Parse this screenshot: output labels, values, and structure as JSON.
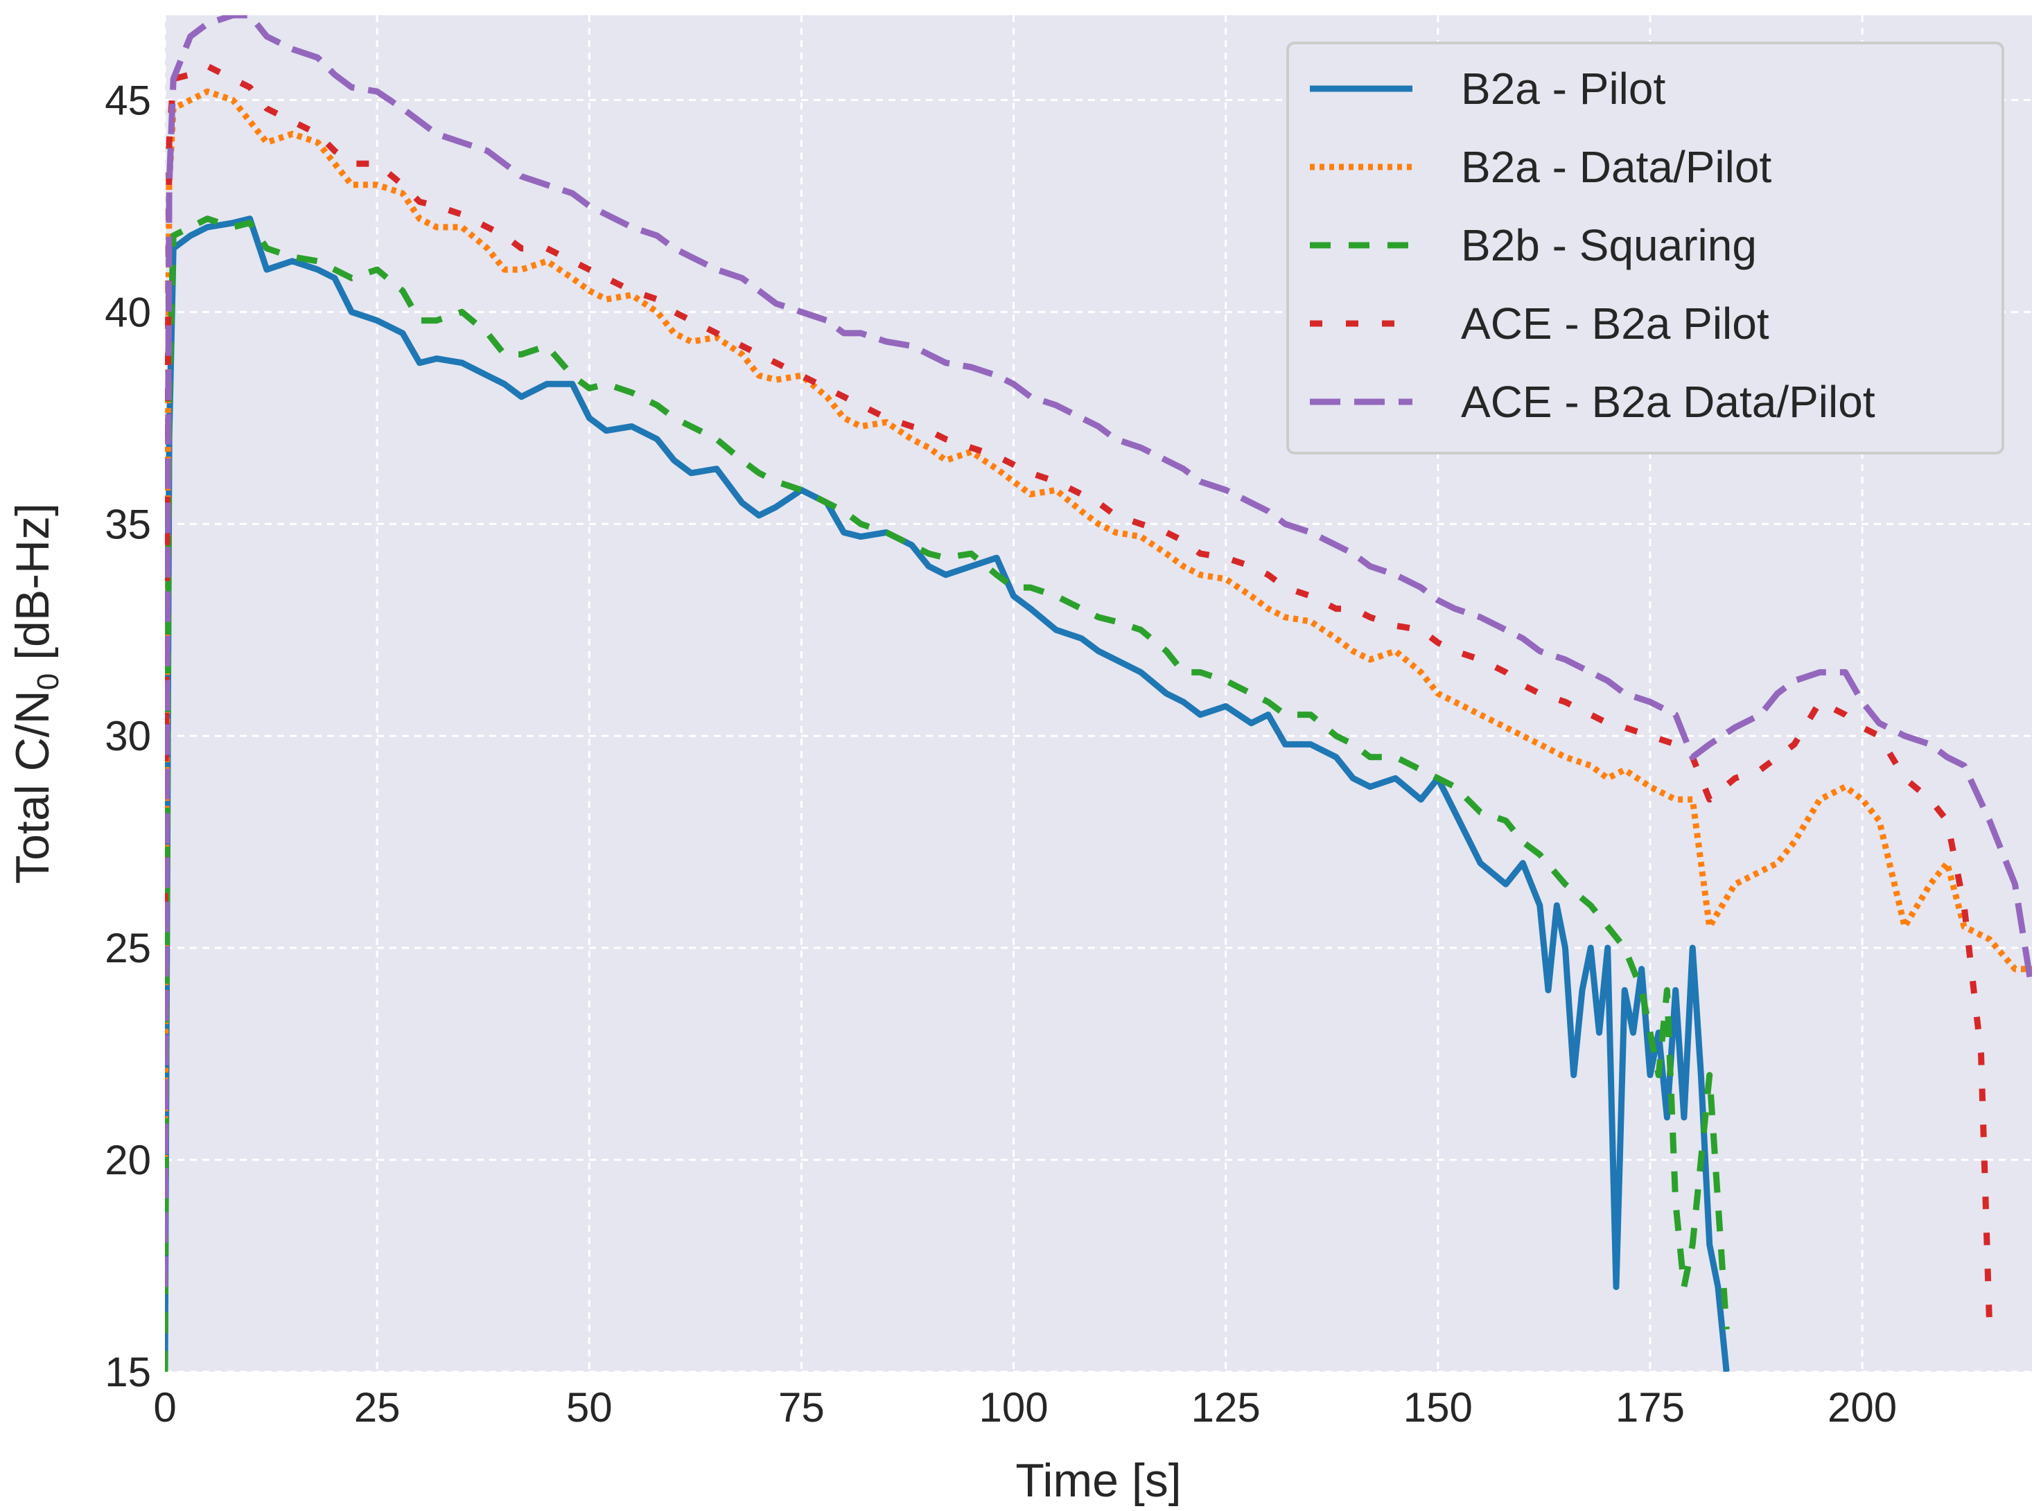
{
  "chart_data": {
    "type": "line",
    "title": "",
    "xlabel": "Time [s]",
    "ylabel_main": "Total C/N",
    "ylabel_sub": "0",
    "ylabel_tail": " [dB-Hz]",
    "xlim": [
      0,
      220
    ],
    "ylim": [
      15,
      47
    ],
    "xticks": [
      0,
      25,
      50,
      75,
      100,
      125,
      150,
      175,
      200
    ],
    "yticks": [
      15,
      20,
      25,
      30,
      35,
      40,
      45
    ],
    "grid": true,
    "legend_position": "top-right",
    "background_color": "#e5e6f0",
    "series": [
      {
        "name": "B2a - Pilot",
        "color": "#1f77b4",
        "style": "solid",
        "x": [
          0,
          0.5,
          1,
          3,
          5,
          8,
          10,
          12,
          15,
          18,
          20,
          22,
          25,
          28,
          30,
          32,
          35,
          38,
          40,
          42,
          45,
          48,
          50,
          52,
          55,
          58,
          60,
          62,
          65,
          68,
          70,
          72,
          75,
          78,
          80,
          82,
          85,
          88,
          90,
          92,
          95,
          98,
          100,
          102,
          105,
          108,
          110,
          112,
          115,
          118,
          120,
          122,
          125,
          128,
          130,
          132,
          135,
          138,
          140,
          142,
          145,
          148,
          150,
          152,
          155,
          158,
          160,
          162,
          163,
          164,
          165,
          166,
          167,
          168,
          169,
          170,
          171,
          172,
          173,
          174,
          175,
          176,
          177,
          178,
          179,
          180,
          181,
          182,
          183,
          184
        ],
        "values": [
          15,
          37,
          41.5,
          41.8,
          42,
          42.1,
          42.2,
          41,
          41.2,
          41,
          40.8,
          40,
          39.8,
          39.5,
          38.8,
          38.9,
          38.8,
          38.5,
          38.3,
          38,
          38.3,
          38.3,
          37.5,
          37.2,
          37.3,
          37,
          36.5,
          36.2,
          36.3,
          35.5,
          35.2,
          35.4,
          35.8,
          35.5,
          34.8,
          34.7,
          34.8,
          34.5,
          34,
          33.8,
          34,
          34.2,
          33.3,
          33,
          32.5,
          32.3,
          32,
          31.8,
          31.5,
          31,
          30.8,
          30.5,
          30.7,
          30.3,
          30.5,
          29.8,
          29.8,
          29.5,
          29,
          28.8,
          29,
          28.5,
          29,
          28.2,
          27,
          26.5,
          27,
          26,
          24,
          26,
          25,
          22,
          24,
          25,
          23,
          25,
          17,
          24,
          23,
          24.5,
          22,
          23,
          21,
          24,
          21,
          25,
          22,
          18,
          17,
          15
        ]
      },
      {
        "name": "B2a - Data/Pilot",
        "color": "#ff7f0e",
        "style": "dotted",
        "x": [
          0,
          0.5,
          1,
          3,
          5,
          8,
          10,
          12,
          15,
          18,
          20,
          22,
          25,
          28,
          30,
          32,
          35,
          38,
          40,
          42,
          45,
          48,
          50,
          52,
          55,
          58,
          60,
          62,
          65,
          68,
          70,
          72,
          75,
          78,
          80,
          82,
          85,
          88,
          90,
          92,
          95,
          98,
          100,
          102,
          105,
          108,
          110,
          112,
          115,
          118,
          120,
          122,
          125,
          128,
          130,
          132,
          135,
          138,
          140,
          142,
          145,
          148,
          150,
          152,
          155,
          158,
          160,
          162,
          165,
          168,
          170,
          172,
          175,
          178,
          180,
          182,
          185,
          188,
          190,
          192,
          195,
          198,
          200,
          202,
          205,
          208,
          210,
          212,
          215,
          218,
          220
        ],
        "values": [
          20,
          43,
          44.8,
          45,
          45.2,
          45,
          44.5,
          44,
          44.2,
          44,
          43.5,
          43,
          43,
          42.8,
          42.2,
          42,
          42,
          41.5,
          41,
          41,
          41.2,
          40.8,
          40.5,
          40.3,
          40.4,
          40,
          39.5,
          39.3,
          39.4,
          39,
          38.5,
          38.4,
          38.5,
          38,
          37.5,
          37.3,
          37.4,
          37,
          36.8,
          36.5,
          36.7,
          36.3,
          36,
          35.7,
          35.8,
          35.3,
          35,
          34.8,
          34.7,
          34.3,
          34,
          33.8,
          33.7,
          33.3,
          33,
          32.8,
          32.7,
          32.3,
          32,
          31.8,
          32,
          31.5,
          31,
          30.8,
          30.5,
          30.2,
          30,
          29.8,
          29.5,
          29.3,
          29,
          29.2,
          28.8,
          28.5,
          28.5,
          25.5,
          26.5,
          26.8,
          27,
          27.5,
          28.5,
          28.8,
          28.5,
          28,
          25.5,
          26.5,
          27,
          25.5,
          25.2,
          24.5,
          24.5
        ]
      },
      {
        "name": "B2b - Squaring",
        "color": "#2ca02c",
        "style": "dashed",
        "x": [
          0,
          0.5,
          1,
          3,
          5,
          8,
          10,
          12,
          15,
          18,
          20,
          22,
          25,
          28,
          30,
          32,
          35,
          38,
          40,
          42,
          45,
          48,
          50,
          52,
          55,
          58,
          60,
          62,
          65,
          68,
          70,
          72,
          75,
          78,
          80,
          82,
          85,
          88,
          90,
          92,
          95,
          98,
          100,
          102,
          105,
          108,
          110,
          112,
          115,
          118,
          120,
          122,
          125,
          128,
          130,
          132,
          135,
          138,
          140,
          142,
          145,
          148,
          150,
          152,
          155,
          158,
          160,
          162,
          165,
          168,
          170,
          172,
          174,
          175,
          176,
          177,
          178,
          179,
          180,
          181,
          182,
          183,
          184
        ],
        "values": [
          15,
          38,
          41.8,
          42,
          42.2,
          42,
          42.1,
          41.5,
          41.3,
          41.2,
          41,
          40.8,
          41,
          40.5,
          39.8,
          39.8,
          40,
          39.5,
          39,
          39,
          39.2,
          38.5,
          38.2,
          38.3,
          38.1,
          37.8,
          37.5,
          37.3,
          37,
          36.5,
          36.2,
          36,
          35.8,
          35.5,
          35.3,
          35,
          34.8,
          34.5,
          34.3,
          34.2,
          34.3,
          33.8,
          33.5,
          33.5,
          33.3,
          33,
          32.8,
          32.7,
          32.5,
          32,
          31.5,
          31.5,
          31.3,
          31,
          30.8,
          30.5,
          30.5,
          30,
          29.8,
          29.5,
          29.5,
          29.2,
          29,
          28.8,
          28.2,
          28,
          27.5,
          27.2,
          26.5,
          26,
          25.5,
          25,
          24,
          23,
          22,
          24,
          19,
          17,
          18,
          20,
          22,
          19,
          16
        ]
      },
      {
        "name": "ACE - B2a Pilot",
        "color": "#d62728",
        "style": "dashdot",
        "x": [
          0,
          0.5,
          1,
          3,
          5,
          8,
          10,
          12,
          15,
          18,
          20,
          22,
          25,
          28,
          30,
          32,
          35,
          38,
          40,
          42,
          45,
          48,
          50,
          52,
          55,
          58,
          60,
          62,
          65,
          68,
          70,
          72,
          75,
          78,
          80,
          82,
          85,
          88,
          90,
          92,
          95,
          98,
          100,
          102,
          105,
          108,
          110,
          112,
          115,
          118,
          120,
          122,
          125,
          128,
          130,
          132,
          135,
          138,
          140,
          142,
          145,
          148,
          150,
          152,
          155,
          158,
          160,
          162,
          165,
          168,
          170,
          172,
          175,
          178,
          180,
          182,
          185,
          188,
          190,
          192,
          195,
          198,
          200,
          202,
          205,
          208,
          210,
          212,
          214,
          215
        ],
        "values": [
          26,
          44,
          45.5,
          45.6,
          45.8,
          45.5,
          45.3,
          44.8,
          44.5,
          44.2,
          43.8,
          43.5,
          43.5,
          43,
          42.6,
          42.5,
          42.3,
          42,
          41.8,
          41.5,
          41.5,
          41.2,
          41,
          40.8,
          40.5,
          40.3,
          40,
          39.8,
          39.5,
          39.2,
          39,
          38.8,
          38.5,
          38.2,
          38,
          37.8,
          37.5,
          37.3,
          37.2,
          37,
          36.8,
          36.6,
          36.4,
          36.2,
          36,
          35.7,
          35.5,
          35.2,
          35,
          34.8,
          34.6,
          34.3,
          34.2,
          34,
          33.8,
          33.5,
          33.3,
          33,
          33,
          32.8,
          32.6,
          32.5,
          32.2,
          32,
          31.8,
          31.5,
          31.2,
          31,
          30.8,
          30.5,
          30.3,
          30.2,
          30,
          29.8,
          29.5,
          28.5,
          29,
          29.2,
          29.5,
          29.8,
          30.8,
          30.5,
          30.2,
          30,
          29,
          28.5,
          28,
          26,
          22.5,
          16
        ]
      },
      {
        "name": "ACE - B2a Data/Pilot",
        "color": "#9467bd",
        "style": "longdash",
        "x": [
          0,
          0.5,
          1,
          3,
          5,
          8,
          10,
          12,
          15,
          18,
          20,
          22,
          25,
          28,
          30,
          32,
          35,
          38,
          40,
          42,
          45,
          48,
          50,
          52,
          55,
          58,
          60,
          62,
          65,
          68,
          70,
          72,
          75,
          78,
          80,
          82,
          85,
          88,
          90,
          92,
          95,
          98,
          100,
          102,
          105,
          108,
          110,
          112,
          115,
          118,
          120,
          122,
          125,
          128,
          130,
          132,
          135,
          138,
          140,
          142,
          145,
          148,
          150,
          152,
          155,
          158,
          160,
          162,
          165,
          168,
          170,
          172,
          175,
          178,
          180,
          182,
          185,
          188,
          190,
          192,
          195,
          198,
          200,
          202,
          205,
          208,
          210,
          212,
          215,
          218,
          220
        ],
        "values": [
          17,
          43,
          45.5,
          46.5,
          46.8,
          47,
          47,
          46.5,
          46.2,
          46,
          45.6,
          45.3,
          45.2,
          44.8,
          44.5,
          44.2,
          44,
          43.8,
          43.5,
          43.2,
          43,
          42.8,
          42.5,
          42.3,
          42,
          41.8,
          41.5,
          41.3,
          41,
          40.8,
          40.5,
          40.2,
          40,
          39.8,
          39.5,
          39.5,
          39.3,
          39.2,
          39,
          38.8,
          38.7,
          38.5,
          38.3,
          38,
          37.8,
          37.5,
          37.3,
          37,
          36.8,
          36.5,
          36.3,
          36,
          35.8,
          35.5,
          35.3,
          35,
          34.8,
          34.5,
          34.3,
          34,
          33.8,
          33.5,
          33.2,
          33,
          32.8,
          32.5,
          32.3,
          32,
          31.8,
          31.5,
          31.3,
          31,
          30.8,
          30.5,
          29.5,
          29.8,
          30.2,
          30.5,
          31,
          31.3,
          31.5,
          31.5,
          30.8,
          30.3,
          30,
          29.8,
          29.5,
          29.3,
          28,
          26.5,
          24
        ]
      }
    ]
  }
}
